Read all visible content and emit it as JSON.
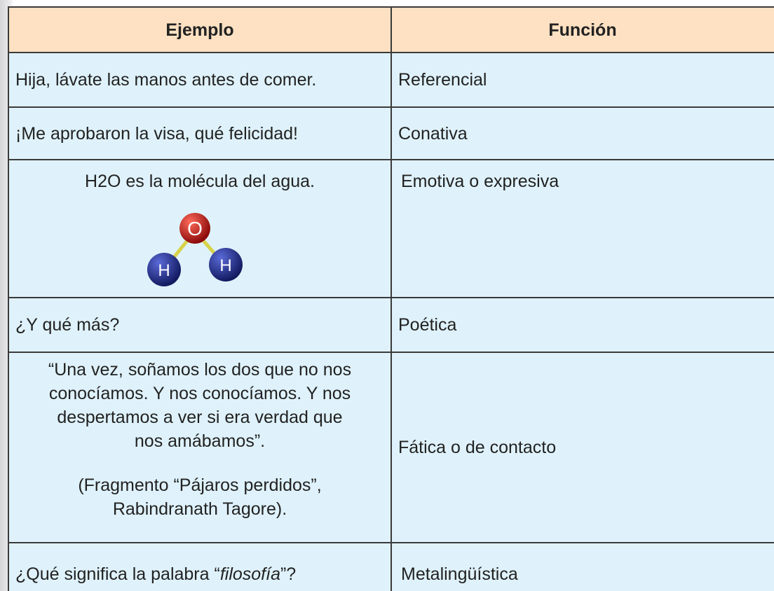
{
  "table": {
    "header": [
      "Ejemplo",
      "Función"
    ],
    "rows": [
      {
        "example": [
          "Hija, lávate las manos antes de comer."
        ],
        "function": "Referencial"
      },
      {
        "example": [
          "¡Me aprobaron la visa, qué felicidad!"
        ],
        "function": "Conativa"
      },
      {
        "example": [
          "H2O es la molécula del agua."
        ],
        "molecule": [
          "O",
          "H",
          "H"
        ],
        "function": "Emotiva o expresiva"
      },
      {
        "example": [
          "¿Y qué más?"
        ],
        "function": "Poética"
      },
      {
        "example": [
          "“Una vez, soñamos los dos que no nos",
          "conocíamos. Y nos conocíamos. Y nos",
          "despertamos a ver si era verdad que",
          "nos amábamos”."
        ],
        "source": [
          "(Fragmento “Pájaros perdidos”,",
          "Rabindranath Tagore)."
        ],
        "function": "Fática o de contacto"
      },
      {
        "example": [
          "¿Qué significa la palabra “",
          "filosofía",
          "”?"
        ],
        "function": "Metalingüística"
      }
    ]
  }
}
